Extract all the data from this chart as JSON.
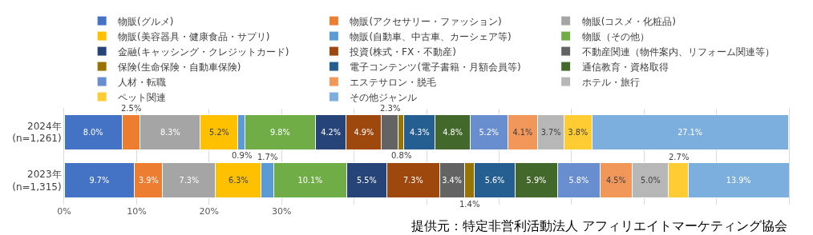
{
  "chart_data": {
    "type": "bar",
    "orientation": "horizontal",
    "stacked": true,
    "categories": [
      "2024年\n(n=1,261)",
      "2023年\n(n=1,315)"
    ],
    "series": [
      {
        "name": "物販(グルメ)",
        "color": "#4472c4",
        "values": [
          8.0,
          9.7
        ],
        "value_labels": [
          "8.0%",
          "9.7%"
        ]
      },
      {
        "name": "物販(アクセサリー・ファッション)",
        "color": "#ed7d31",
        "values": [
          2.5,
          3.9
        ],
        "value_labels": [
          "2.5%",
          "3.9%"
        ]
      },
      {
        "name": "物販(コスメ・化粧品)",
        "color": "#a5a5a5",
        "values": [
          8.3,
          7.3
        ],
        "value_labels": [
          "8.3%",
          "7.3%"
        ]
      },
      {
        "name": "物販(美容器具・健康食品・サプリ)",
        "color": "#ffc000",
        "values": [
          5.2,
          6.3
        ],
        "value_labels": [
          "5.2%",
          "6.3%"
        ]
      },
      {
        "name": "物販(自動車、中古車、カーシェア等)",
        "color": "#5b9bd5",
        "values": [
          0.9,
          1.7
        ],
        "value_labels": [
          "0.9%",
          "1.7%"
        ]
      },
      {
        "name": "物販（その他）",
        "color": "#70ad47",
        "values": [
          9.8,
          10.1
        ],
        "value_labels": [
          "9.8%",
          "10.1%"
        ]
      },
      {
        "name": "金融(キャッシング・クレジットカード)",
        "color": "#264478",
        "values": [
          4.2,
          5.5
        ],
        "value_labels": [
          "4.2%",
          "5.5%"
        ]
      },
      {
        "name": "投資(株式・FX・不動産)",
        "color": "#9e480e",
        "values": [
          4.9,
          7.3
        ],
        "value_labels": [
          "4.9%",
          "7.3%"
        ]
      },
      {
        "name": "不動産関連（物件案内、リフォーム関連等）",
        "color": "#636363",
        "values": [
          2.3,
          3.4
        ],
        "value_labels": [
          "2.3%",
          "3.4%"
        ]
      },
      {
        "name": "保険(生命保険・自動車保険)",
        "color": "#997300",
        "values": [
          0.8,
          1.4
        ],
        "value_labels": [
          "0.8%",
          "1.4%"
        ]
      },
      {
        "name": "電子コンテンツ(電子書籍・月額会員等)",
        "color": "#255e91",
        "values": [
          4.3,
          5.6
        ],
        "value_labels": [
          "4.3%",
          "5.6%"
        ]
      },
      {
        "name": "通信教育・資格取得",
        "color": "#43682b",
        "values": [
          4.8,
          5.9
        ],
        "value_labels": [
          "4.8%",
          "5.9%"
        ]
      },
      {
        "name": "人材・転職",
        "color": "#698ed0",
        "values": [
          5.2,
          5.8
        ],
        "value_labels": [
          "5.2%",
          "5.8%"
        ]
      },
      {
        "name": "エステサロン・脱毛",
        "color": "#f1975a",
        "values": [
          4.1,
          4.5
        ],
        "value_labels": [
          "4.1%",
          "4.5%"
        ]
      },
      {
        "name": "ホテル・旅行",
        "color": "#b7b7b7",
        "values": [
          3.7,
          5.0
        ],
        "value_labels": [
          "3.7%",
          "5.0%"
        ]
      },
      {
        "name": "ペット関連",
        "color": "#ffcd33",
        "values": [
          3.8,
          2.7
        ],
        "value_labels": [
          "3.8%",
          "2.7%"
        ]
      },
      {
        "name": "その他ジャンル",
        "color": "#7cafdd",
        "values": [
          27.1,
          13.9
        ],
        "value_labels": [
          "27.1%",
          "13.9%"
        ]
      }
    ],
    "xlim": [
      0,
      100
    ],
    "xticks": [
      {
        "value": 0,
        "label": "0%"
      },
      {
        "value": 10,
        "label": "10%"
      },
      {
        "value": 20,
        "label": "20%"
      },
      {
        "value": 30,
        "label": "30%"
      },
      {
        "value": 40,
        "label": null
      },
      {
        "value": 50,
        "label": null
      },
      {
        "value": 60,
        "label": null
      },
      {
        "value": 70,
        "label": null
      },
      {
        "value": 80,
        "label": null
      },
      {
        "value": 90,
        "label": null
      },
      {
        "value": 100,
        "label": null
      }
    ],
    "grid": "x",
    "legend": "top",
    "annotations": [
      "提供元：特定非営利活動法人 アフィリエイトマーケティング協会"
    ]
  }
}
